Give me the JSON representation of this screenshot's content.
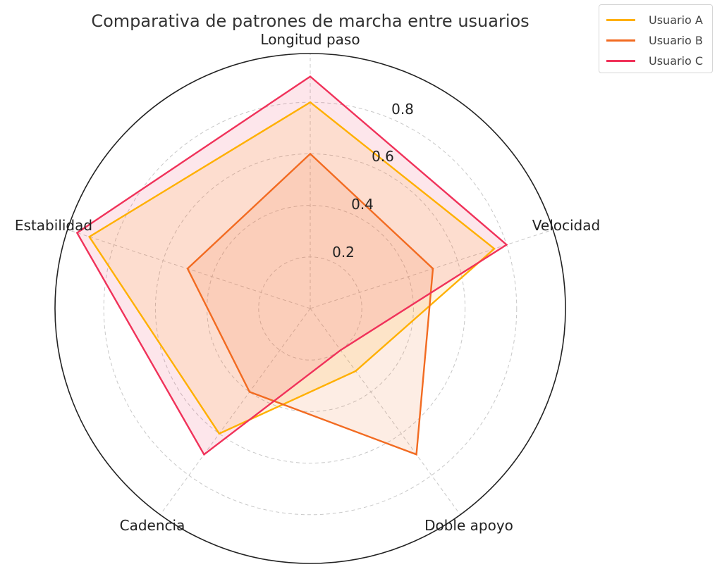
{
  "chart_data": {
    "type": "radar",
    "title": "Comparativa de patrones de marcha entre usuarios",
    "categories": [
      "Longitud paso",
      "Velocidad",
      "Doble apoyo",
      "Cadencia",
      "Estabilidad"
    ],
    "series": [
      {
        "name": "Usuario A",
        "color": "#FFB000",
        "values": [
          0.8,
          0.75,
          0.3,
          0.6,
          0.9
        ]
      },
      {
        "name": "Usuario B",
        "color": "#F26B21",
        "values": [
          0.6,
          0.5,
          0.7,
          0.4,
          0.5
        ]
      },
      {
        "name": "Usuario C",
        "color": "#F0325A",
        "values": [
          0.9,
          0.8,
          0.2,
          0.7,
          0.95
        ]
      }
    ],
    "radial_ticks": [
      0.2,
      0.4,
      0.6,
      0.8
    ],
    "radial_tick_labels": [
      "0.2",
      "0.4",
      "0.6",
      "0.8"
    ],
    "ylim": [
      0,
      1
    ],
    "grid": true,
    "legend_position": "upper right (outside)"
  },
  "legend": {
    "items": [
      {
        "label": "Usuario A",
        "color": "#FFB000"
      },
      {
        "label": "Usuario B",
        "color": "#F26B21"
      },
      {
        "label": "Usuario C",
        "color": "#F0325A"
      }
    ]
  }
}
